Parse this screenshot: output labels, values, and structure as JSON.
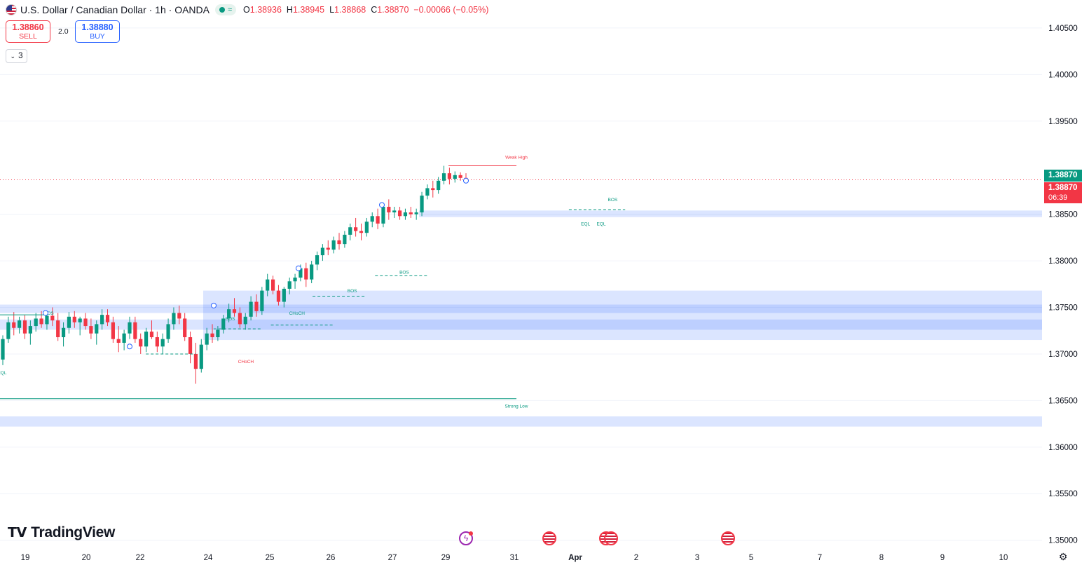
{
  "header": {
    "symbol_title": "U.S. Dollar / Canadian Dollar · 1h · OANDA",
    "status_icon": "≈",
    "ohlc": [
      {
        "k": "O",
        "v": "1.38936"
      },
      {
        "k": "H",
        "v": "1.38945"
      },
      {
        "k": "L",
        "v": "1.38868"
      },
      {
        "k": "C",
        "v": "1.38870"
      }
    ],
    "change": "−0.00066 (−0.05%)"
  },
  "trade": {
    "sell_price": "1.38860",
    "sell_label": "SELL",
    "spread": "2.0",
    "buy_price": "1.38880",
    "buy_label": "BUY"
  },
  "indicators_count": "3",
  "brand": "TradingView",
  "price_tags": {
    "last": "1.38870",
    "current": "1.38870",
    "countdown": "06:39"
  },
  "colors": {
    "up": "#089981",
    "down": "#f23645",
    "zone": "#2962ff",
    "accent": "#2962ff"
  },
  "chart_data": {
    "type": "candlestick",
    "symbol": "USDCAD",
    "timeframe": "1h",
    "y_ticks": [
      "1.40500",
      "1.40000",
      "1.39500",
      "1.38500",
      "1.38000",
      "1.37500",
      "1.37000",
      "1.36500",
      "1.36000",
      "1.35500",
      "1.35000"
    ],
    "x_ticks": [
      "19",
      "20",
      "22",
      "24",
      "25",
      "26",
      "27",
      "29",
      "31",
      "Apr",
      "2",
      "3",
      "5",
      "7",
      "8",
      "9",
      "10"
    ],
    "ylim": [
      1.3496,
      1.4074
    ],
    "last_price": 1.3887,
    "candles": [
      [
        1.3694,
        1.372,
        1.3688,
        1.3716
      ],
      [
        1.3716,
        1.374,
        1.3712,
        1.3734
      ],
      [
        1.3734,
        1.3745,
        1.372,
        1.3728
      ],
      [
        1.3728,
        1.374,
        1.3722,
        1.3736
      ],
      [
        1.3736,
        1.3742,
        1.3716,
        1.3722
      ],
      [
        1.3722,
        1.3736,
        1.371,
        1.373
      ],
      [
        1.373,
        1.3744,
        1.3724,
        1.3738
      ],
      [
        1.3738,
        1.3746,
        1.3728,
        1.3732
      ],
      [
        1.3732,
        1.3745,
        1.3726,
        1.3741
      ],
      [
        1.3741,
        1.375,
        1.373,
        1.3736
      ],
      [
        1.3736,
        1.3744,
        1.3714,
        1.3718
      ],
      [
        1.3718,
        1.3734,
        1.3708,
        1.3728
      ],
      [
        1.3728,
        1.3745,
        1.3722,
        1.374
      ],
      [
        1.374,
        1.3746,
        1.3728,
        1.3734
      ],
      [
        1.3734,
        1.374,
        1.372,
        1.3738
      ],
      [
        1.3738,
        1.3744,
        1.3726,
        1.373
      ],
      [
        1.373,
        1.3738,
        1.3716,
        1.3722
      ],
      [
        1.3722,
        1.3736,
        1.371,
        1.3732
      ],
      [
        1.3732,
        1.3748,
        1.3726,
        1.3742
      ],
      [
        1.3742,
        1.3748,
        1.373,
        1.3734
      ],
      [
        1.3734,
        1.374,
        1.3712,
        1.3716
      ],
      [
        1.3716,
        1.373,
        1.3702,
        1.3712
      ],
      [
        1.3712,
        1.3726,
        1.3704,
        1.3722
      ],
      [
        1.3722,
        1.374,
        1.3716,
        1.3734
      ],
      [
        1.3734,
        1.374,
        1.3712,
        1.3716
      ],
      [
        1.3716,
        1.3722,
        1.37,
        1.3708
      ],
      [
        1.3708,
        1.3728,
        1.3702,
        1.3724
      ],
      [
        1.3724,
        1.3736,
        1.3716,
        1.3718
      ],
      [
        1.3718,
        1.3724,
        1.3702,
        1.3708
      ],
      [
        1.3708,
        1.3722,
        1.37,
        1.3716
      ],
      [
        1.3716,
        1.3738,
        1.3712,
        1.3732
      ],
      [
        1.3732,
        1.375,
        1.3726,
        1.3744
      ],
      [
        1.3744,
        1.3752,
        1.3732,
        1.3738
      ],
      [
        1.3738,
        1.3744,
        1.3714,
        1.3718
      ],
      [
        1.3718,
        1.3724,
        1.369,
        1.37
      ],
      [
        1.37,
        1.3712,
        1.3668,
        1.3684
      ],
      [
        1.3684,
        1.3716,
        1.368,
        1.371
      ],
      [
        1.371,
        1.3728,
        1.3704,
        1.3722
      ],
      [
        1.3722,
        1.3732,
        1.3712,
        1.3718
      ],
      [
        1.3718,
        1.373,
        1.3714,
        1.3726
      ],
      [
        1.3726,
        1.3742,
        1.3722,
        1.3738
      ],
      [
        1.3738,
        1.3754,
        1.3734,
        1.3748
      ],
      [
        1.3748,
        1.376,
        1.374,
        1.3744
      ],
      [
        1.3744,
        1.375,
        1.3728,
        1.3732
      ],
      [
        1.3732,
        1.3744,
        1.3726,
        1.374
      ],
      [
        1.374,
        1.3762,
        1.3736,
        1.3756
      ],
      [
        1.3756,
        1.3764,
        1.374,
        1.3746
      ],
      [
        1.3746,
        1.3772,
        1.3742,
        1.3768
      ],
      [
        1.3768,
        1.3786,
        1.3762,
        1.378
      ],
      [
        1.378,
        1.3784,
        1.3764,
        1.3768
      ],
      [
        1.3768,
        1.3774,
        1.3752,
        1.3756
      ],
      [
        1.3756,
        1.3772,
        1.375,
        1.377
      ],
      [
        1.377,
        1.3782,
        1.3764,
        1.3778
      ],
      [
        1.3778,
        1.3786,
        1.377,
        1.3782
      ],
      [
        1.3782,
        1.3796,
        1.3778,
        1.3792
      ],
      [
        1.3792,
        1.3798,
        1.3772,
        1.378
      ],
      [
        1.378,
        1.38,
        1.3776,
        1.3796
      ],
      [
        1.3796,
        1.381,
        1.379,
        1.3806
      ],
      [
        1.3806,
        1.3818,
        1.38,
        1.3814
      ],
      [
        1.3814,
        1.3822,
        1.3806,
        1.3812
      ],
      [
        1.3812,
        1.3826,
        1.3808,
        1.3822
      ],
      [
        1.3822,
        1.383,
        1.3812,
        1.3818
      ],
      [
        1.3818,
        1.3832,
        1.3814,
        1.3828
      ],
      [
        1.3828,
        1.384,
        1.3822,
        1.3836
      ],
      [
        1.3836,
        1.3846,
        1.3826,
        1.3832
      ],
      [
        1.3832,
        1.384,
        1.3822,
        1.383
      ],
      [
        1.383,
        1.3846,
        1.3826,
        1.3842
      ],
      [
        1.3842,
        1.3852,
        1.3836,
        1.3848
      ],
      [
        1.3848,
        1.3856,
        1.3834,
        1.384
      ],
      [
        1.384,
        1.3862,
        1.3836,
        1.3858
      ],
      [
        1.3858,
        1.3866,
        1.3844,
        1.3852
      ],
      [
        1.3852,
        1.3858,
        1.3846,
        1.3854
      ],
      [
        1.3854,
        1.3858,
        1.3844,
        1.3848
      ],
      [
        1.3848,
        1.3856,
        1.3844,
        1.3852
      ],
      [
        1.3852,
        1.3858,
        1.3846,
        1.385
      ],
      [
        1.385,
        1.3856,
        1.3844,
        1.3852
      ],
      [
        1.3852,
        1.3874,
        1.3848,
        1.387
      ],
      [
        1.387,
        1.3882,
        1.3866,
        1.3878
      ],
      [
        1.3878,
        1.3886,
        1.3868,
        1.3876
      ],
      [
        1.3876,
        1.389,
        1.3872,
        1.3886
      ],
      [
        1.3886,
        1.3902,
        1.3882,
        1.3894
      ],
      [
        1.3894,
        1.39,
        1.3882,
        1.3888
      ],
      [
        1.3888,
        1.3896,
        1.3884,
        1.3892
      ],
      [
        1.3892,
        1.3895,
        1.3886,
        1.3889
      ],
      [
        1.3889,
        1.3894,
        1.3887,
        1.3887
      ]
    ],
    "zones": [
      {
        "y1": 1.3847,
        "y2": 1.3854
      },
      {
        "y1": 1.3715,
        "y2": 1.3768
      },
      {
        "y1": 1.3744,
        "y2": 1.3753
      },
      {
        "y1": 1.3726,
        "y2": 1.3737
      },
      {
        "y1": 1.3622,
        "y2": 1.3633
      }
    ],
    "levels": [
      {
        "label": "Weak High",
        "price": 1.3902
      },
      {
        "label": "Strong Low",
        "price": 1.3652
      }
    ],
    "annotations": [
      {
        "text": "BOS",
        "x": 0.047,
        "price": 1.3742
      },
      {
        "text": "BOS",
        "x": 0.221,
        "price": 1.3736
      },
      {
        "text": "CHoCH",
        "x": 0.285,
        "price": 1.3742
      },
      {
        "text": "CHoCH",
        "x": 0.236,
        "price": 1.369
      },
      {
        "text": "BOS",
        "x": 0.338,
        "price": 1.3766
      },
      {
        "text": "BOS",
        "x": 0.388,
        "price": 1.3786
      },
      {
        "text": "BOS",
        "x": 0.588,
        "price": 1.3864
      },
      {
        "text": "EQL",
        "x": 0.562,
        "price": 1.3838
      },
      {
        "text": "EQL",
        "x": 0.577,
        "price": 1.3838
      },
      {
        "text": "EQL",
        "x": 0.002,
        "price": 1.3678
      }
    ]
  },
  "events": [
    "bolt-icon",
    "us-flag-icon",
    "us-flag-icon",
    "us-flag-icon"
  ]
}
